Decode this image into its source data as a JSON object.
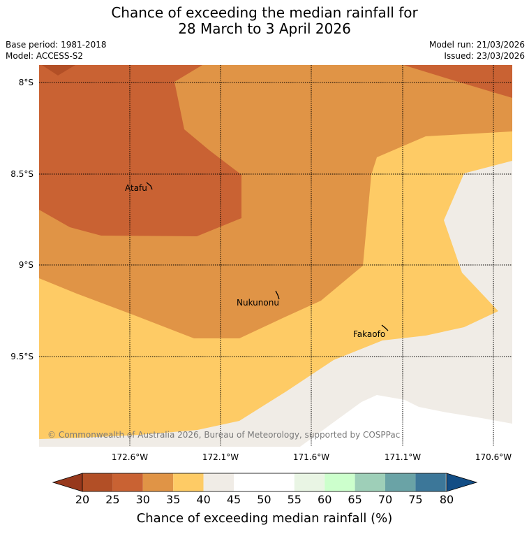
{
  "header": {
    "title_line1": "Chance of exceeding the median rainfall for",
    "title_line2": "28 March to 3 April 2026",
    "base_period": "Base period: 1981-2018",
    "model": "Model: ACCESS-S2",
    "model_run": "Model run: 21/03/2026",
    "issued": "Issued: 23/03/2026"
  },
  "map": {
    "lat_labels": [
      "8°S",
      "8.5°S",
      "9°S",
      "9.5°S"
    ],
    "lon_labels": [
      "172.6°W",
      "172.1°W",
      "171.6°W",
      "171.1°W",
      "170.6°W"
    ],
    "places": [
      "Atafu",
      "Nukunonu",
      "Fakaofo"
    ],
    "copyright": "© Commonwealth of Australia 2026, Bureau of Meteorology, supported by COSPPac"
  },
  "colorbar": {
    "tick_labels": [
      "20",
      "25",
      "30",
      "35",
      "40",
      "45",
      "50",
      "55",
      "60",
      "65",
      "70",
      "75",
      "80"
    ],
    "title": "Chance of exceeding median rainfall (%)",
    "colors": {
      "below_20": "#97381c",
      "c20_25": "#b24f26",
      "c25_30": "#c96233",
      "c30_35": "#e09446",
      "c35_40": "#fecb65",
      "c40_45": "#f0ece6",
      "c45_50": "#ffffff",
      "c50_55": "#ffffff",
      "c55_60": "#e9f5e4",
      "c60_65": "#ccffcc",
      "c65_70": "#9ecfb8",
      "c70_75": "#6aa3a6",
      "c75_80": "#3c7799",
      "above_80": "#124d85"
    }
  }
}
